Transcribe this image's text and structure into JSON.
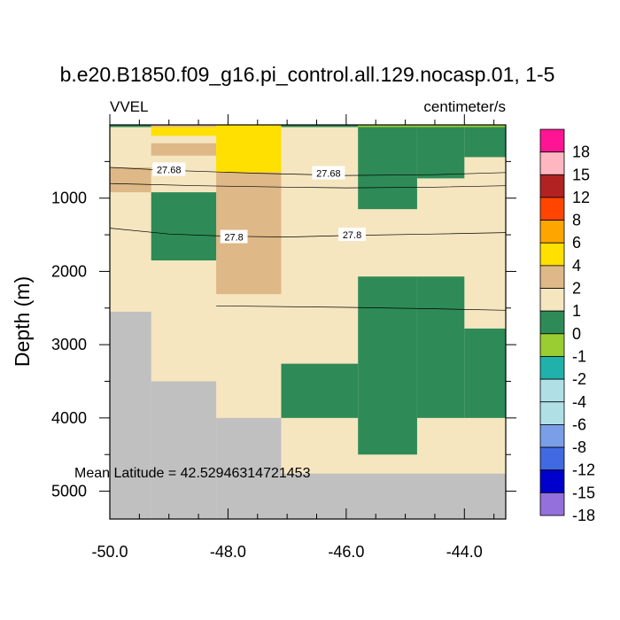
{
  "chart_data": {
    "type": "heatmap",
    "title": "b.e20.B1850.f09_g16.pi_control.all.129.nocasp.01, 1-5",
    "variable_label": "VVEL",
    "units_label": "centimeter/s",
    "ylabel": "Depth (m)",
    "xlabel": "",
    "annotation": "Mean Latitude = 42.52946314721453",
    "xlim": [
      -50.0,
      -43.3
    ],
    "ylim": [
      5380,
      0
    ],
    "x_ticks": [
      -50.0,
      -48.0,
      -46.0,
      -44.0
    ],
    "x_tick_labels": [
      "-50.0",
      "-48.0",
      "-46.0",
      "-44.0"
    ],
    "y_ticks": [
      1000,
      2000,
      3000,
      4000,
      5000
    ],
    "y_tick_labels": [
      "1000",
      "2000",
      "3000",
      "4000",
      "5000"
    ],
    "colorbar": {
      "labels": [
        "18",
        "15",
        "12",
        "8",
        "6",
        "4",
        "2",
        "1",
        "0",
        "-1",
        "-2",
        "-4",
        "-6",
        "-8",
        "-12",
        "-15",
        "-18"
      ],
      "colors": [
        "#ff1493",
        "#ffb6c1",
        "#b22222",
        "#ff4500",
        "#ffa500",
        "#ffe000",
        "#deb887",
        "#f5e6c0",
        "#2e8b57",
        "#9acd32",
        "#20b2aa",
        "#b0e0e6",
        "#b0e0e6",
        "#7b9ee8",
        "#4169e1",
        "#0000cd",
        "#9370db"
      ]
    },
    "cells": [
      {
        "x0": -50.0,
        "x1": -43.3,
        "d0": 0,
        "d1": 5380,
        "color": "#f5e6c0"
      },
      {
        "x0": -50.0,
        "x1": -49.3,
        "d0": 2550,
        "d1": 5380,
        "color": "#c0c0c0"
      },
      {
        "x0": -49.3,
        "x1": -48.2,
        "d0": 3500,
        "d1": 5380,
        "color": "#c0c0c0"
      },
      {
        "x0": -48.2,
        "x1": -47.1,
        "d0": 4000,
        "d1": 5380,
        "color": "#c0c0c0"
      },
      {
        "x0": -47.1,
        "x1": -43.3,
        "d0": 4760,
        "d1": 5380,
        "color": "#c0c0c0"
      },
      {
        "x0": -50.0,
        "x1": -49.3,
        "d0": 0,
        "d1": 30,
        "color": "#2e8b57"
      },
      {
        "x0": -49.3,
        "x1": -48.2,
        "d0": 0,
        "d1": 30,
        "color": "#deb887"
      },
      {
        "x0": -47.1,
        "x1": -45.8,
        "d0": 0,
        "d1": 30,
        "color": "#2e8b57"
      },
      {
        "x0": -45.8,
        "x1": -44.8,
        "d0": 0,
        "d1": 90,
        "color": "#9acd32"
      },
      {
        "x0": -44.8,
        "x1": -43.3,
        "d0": 0,
        "d1": 30,
        "color": "#9acd32"
      },
      {
        "x0": -49.3,
        "x1": -48.2,
        "d0": 30,
        "d1": 150,
        "color": "#ffe000"
      },
      {
        "x0": -49.3,
        "x1": -48.2,
        "d0": 150,
        "d1": 250,
        "color": "#f5e6c0"
      },
      {
        "x0": -49.3,
        "x1": -48.2,
        "d0": 250,
        "d1": 420,
        "color": "#deb887"
      },
      {
        "x0": -48.2,
        "x1": -47.1,
        "d0": 0,
        "d1": 650,
        "color": "#ffe000"
      },
      {
        "x0": -48.2,
        "x1": -47.1,
        "d0": 650,
        "d1": 2310,
        "color": "#deb887"
      },
      {
        "x0": -50.0,
        "x1": -49.3,
        "d0": 580,
        "d1": 920,
        "color": "#deb887"
      },
      {
        "x0": -49.3,
        "x1": -48.2,
        "d0": 920,
        "d1": 1850,
        "color": "#2e8b57"
      },
      {
        "x0": -45.8,
        "x1": -44.8,
        "d0": 30,
        "d1": 1150,
        "color": "#2e8b57"
      },
      {
        "x0": -44.8,
        "x1": -44.0,
        "d0": 30,
        "d1": 730,
        "color": "#2e8b57"
      },
      {
        "x0": -44.0,
        "x1": -43.3,
        "d0": 30,
        "d1": 440,
        "color": "#2e8b57"
      },
      {
        "x0": -45.8,
        "x1": -44.8,
        "d0": 2070,
        "d1": 4500,
        "color": "#2e8b57"
      },
      {
        "x0": -44.8,
        "x1": -44.0,
        "d0": 2070,
        "d1": 4000,
        "color": "#2e8b57"
      },
      {
        "x0": -44.0,
        "x1": -43.3,
        "d0": 2780,
        "d1": 4000,
        "color": "#2e8b57"
      },
      {
        "x0": -47.1,
        "x1": -45.8,
        "d0": 3260,
        "d1": 4000,
        "color": "#2e8b57"
      }
    ],
    "contours": [
      {
        "level": "27.68",
        "points": [
          [
            -50.0,
            580
          ],
          [
            -49.0,
            620
          ],
          [
            -47.5,
            660
          ],
          [
            -46.0,
            690
          ],
          [
            -44.5,
            680
          ],
          [
            -43.3,
            650
          ]
        ]
      },
      {
        "level": "27.68",
        "points": [
          [
            -50.0,
            800
          ],
          [
            -48.5,
            830
          ],
          [
            -47.0,
            850
          ],
          [
            -46.0,
            860
          ],
          [
            -44.5,
            850
          ],
          [
            -43.3,
            830
          ]
        ]
      },
      {
        "level": "27.8",
        "points": [
          [
            -50.0,
            1410
          ],
          [
            -49.0,
            1490
          ],
          [
            -48.0,
            1520
          ],
          [
            -47.0,
            1530
          ],
          [
            -46.0,
            1510
          ],
          [
            -44.5,
            1490
          ],
          [
            -43.3,
            1470
          ]
        ]
      },
      {
        "level": "",
        "points": [
          [
            -48.2,
            2470
          ],
          [
            -46.0,
            2490
          ],
          [
            -44.5,
            2510
          ],
          [
            -43.3,
            2530
          ]
        ]
      }
    ],
    "contour_labels": [
      {
        "text": "27.68",
        "x": -49.0,
        "d": 610
      },
      {
        "text": "27.68",
        "x": -46.3,
        "d": 660
      },
      {
        "text": "27.8",
        "x": -47.9,
        "d": 1530
      },
      {
        "text": "27.8",
        "x": -45.9,
        "d": 1500
      }
    ]
  }
}
